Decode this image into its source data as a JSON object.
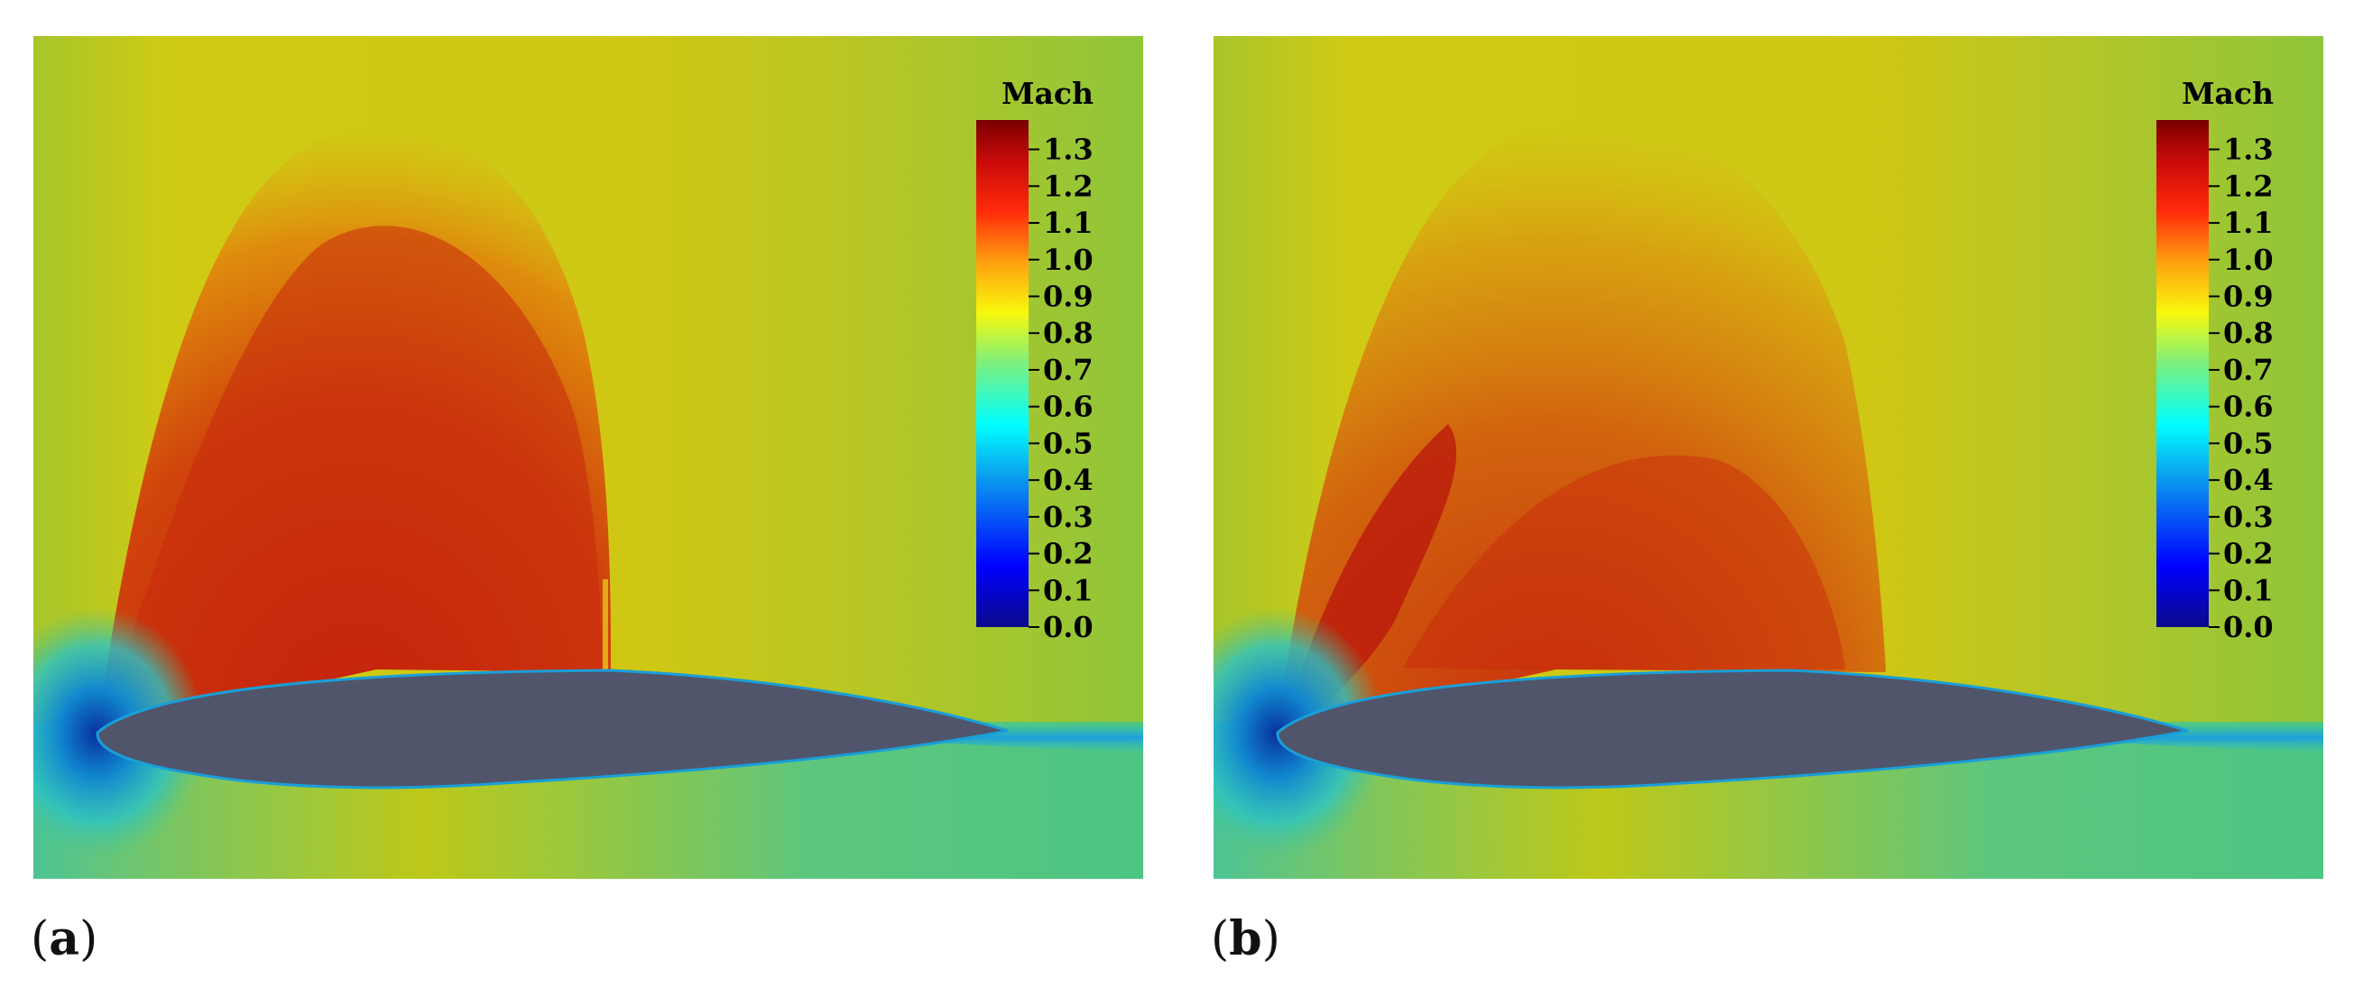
{
  "panels": [
    {
      "label": "a",
      "colorbar": {
        "title": "Mach",
        "ticks": [
          "1.3",
          "1.2",
          "1.1",
          "1.0",
          "0.9",
          "0.8",
          "0.7",
          "0.6",
          "0.5",
          "0.4",
          "0.3",
          "0.2",
          "0.1",
          "0.0"
        ],
        "range": [
          0.0,
          1.38
        ]
      }
    },
    {
      "label": "b",
      "colorbar": {
        "title": "Mach",
        "ticks": [
          "1.3",
          "1.2",
          "1.1",
          "1.0",
          "0.9",
          "0.8",
          "0.7",
          "0.6",
          "0.5",
          "0.4",
          "0.3",
          "0.2",
          "0.1",
          "0.0"
        ],
        "range": [
          0.0,
          1.38
        ]
      }
    }
  ],
  "colors": {
    "freestream": "#8fc63a",
    "supersonic": "#c8250c",
    "stagnation": "#0c63b8",
    "airfoil": "#50556b"
  }
}
